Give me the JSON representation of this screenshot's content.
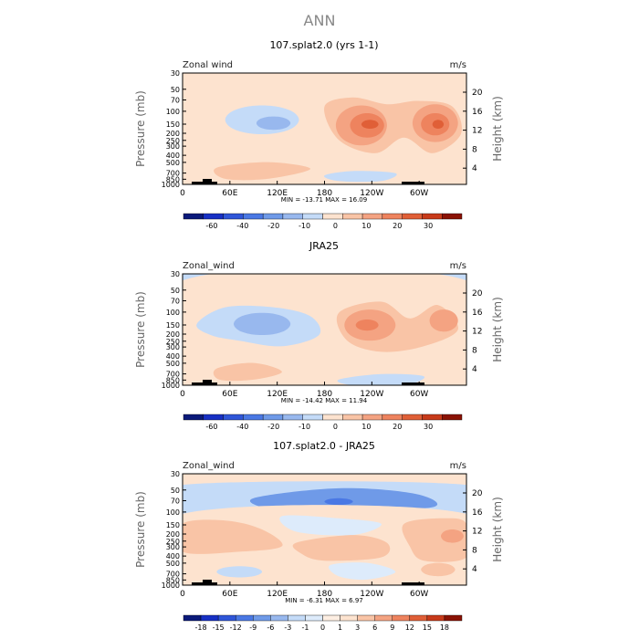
{
  "figure": {
    "title": "ANN"
  },
  "chart_data": [
    {
      "type": "heatmap",
      "title": "107.splat2.0 (yrs 1-1)",
      "left_label": "Zonal wind",
      "right_label": "m/s",
      "ylabel": "Pressure (mb)",
      "ylabel_right": "Height (km)",
      "min_max": "MIN = -13.71   MAX =  16.09",
      "x_ticks": [
        "0",
        "60E",
        "120E",
        "180",
        "120W",
        "60W"
      ],
      "y_ticks": [
        "30",
        "50",
        "70",
        "100",
        "150",
        "200",
        "250",
        "300",
        "400",
        "500",
        "700",
        "850",
        "1000"
      ],
      "height_ticks": [
        "20",
        "16",
        "12",
        "8",
        "4"
      ],
      "colorbar_labels": [
        "-60",
        "-40",
        "-20",
        "-10",
        "0",
        "10",
        "20",
        "30"
      ],
      "range": {
        "min": -13.71,
        "max": 16.09
      }
    },
    {
      "type": "heatmap",
      "title": "JRA25",
      "left_label": "Zonal_wind",
      "right_label": "m/s",
      "ylabel": "Pressure (mb)",
      "ylabel_right": "Height (km)",
      "min_max": "MIN = -14.42   MAX =  11.94",
      "x_ticks": [
        "0",
        "60E",
        "120E",
        "180",
        "120W",
        "60W"
      ],
      "y_ticks": [
        "30",
        "50",
        "70",
        "100",
        "150",
        "200",
        "250",
        "300",
        "400",
        "500",
        "700",
        "850",
        "1000"
      ],
      "height_ticks": [
        "20",
        "16",
        "12",
        "8",
        "4"
      ],
      "colorbar_labels": [
        "-60",
        "-40",
        "-20",
        "-10",
        "0",
        "10",
        "20",
        "30"
      ],
      "range": {
        "min": -14.42,
        "max": 11.94
      }
    },
    {
      "type": "heatmap",
      "title": "107.splat2.0 - JRA25",
      "left_label": "Zonal_wind",
      "right_label": "m/s",
      "ylabel": "Pressure (mb)",
      "ylabel_right": "Height (km)",
      "min_max": "MIN = -6.31   MAX =  6.97",
      "x_ticks": [
        "0",
        "60E",
        "120E",
        "180",
        "120W",
        "60W"
      ],
      "y_ticks": [
        "30",
        "50",
        "70",
        "100",
        "150",
        "200",
        "250",
        "300",
        "400",
        "500",
        "700",
        "850",
        "1000"
      ],
      "height_ticks": [
        "20",
        "16",
        "12",
        "8",
        "4"
      ],
      "colorbar_labels": [
        "-18",
        "-15",
        "-12",
        "-9",
        "-6",
        "-3",
        "-1",
        "0",
        "1",
        "3",
        "6",
        "9",
        "12",
        "15",
        "18"
      ],
      "range": {
        "min": -6.31,
        "max": 6.97
      }
    }
  ],
  "colors": {
    "main_scale": [
      "#0b1a7a",
      "#1730c4",
      "#2f56d8",
      "#4a78e4",
      "#6f9ae8",
      "#98b8ee",
      "#c4dbf8",
      "#fde3cf",
      "#f9c4a6",
      "#f4a382",
      "#ee835e",
      "#e05f37",
      "#c73a1a",
      "#8a1204"
    ],
    "diff_scale": [
      "#0b1a7a",
      "#1730c4",
      "#2f56d8",
      "#4a78e4",
      "#6f9ae8",
      "#98b8ee",
      "#c4dbf8",
      "#ddebfb",
      "#fdeee2",
      "#fde3cf",
      "#f9c4a6",
      "#f4a382",
      "#ee835e",
      "#e05f37",
      "#c73a1a",
      "#8a1204"
    ]
  }
}
